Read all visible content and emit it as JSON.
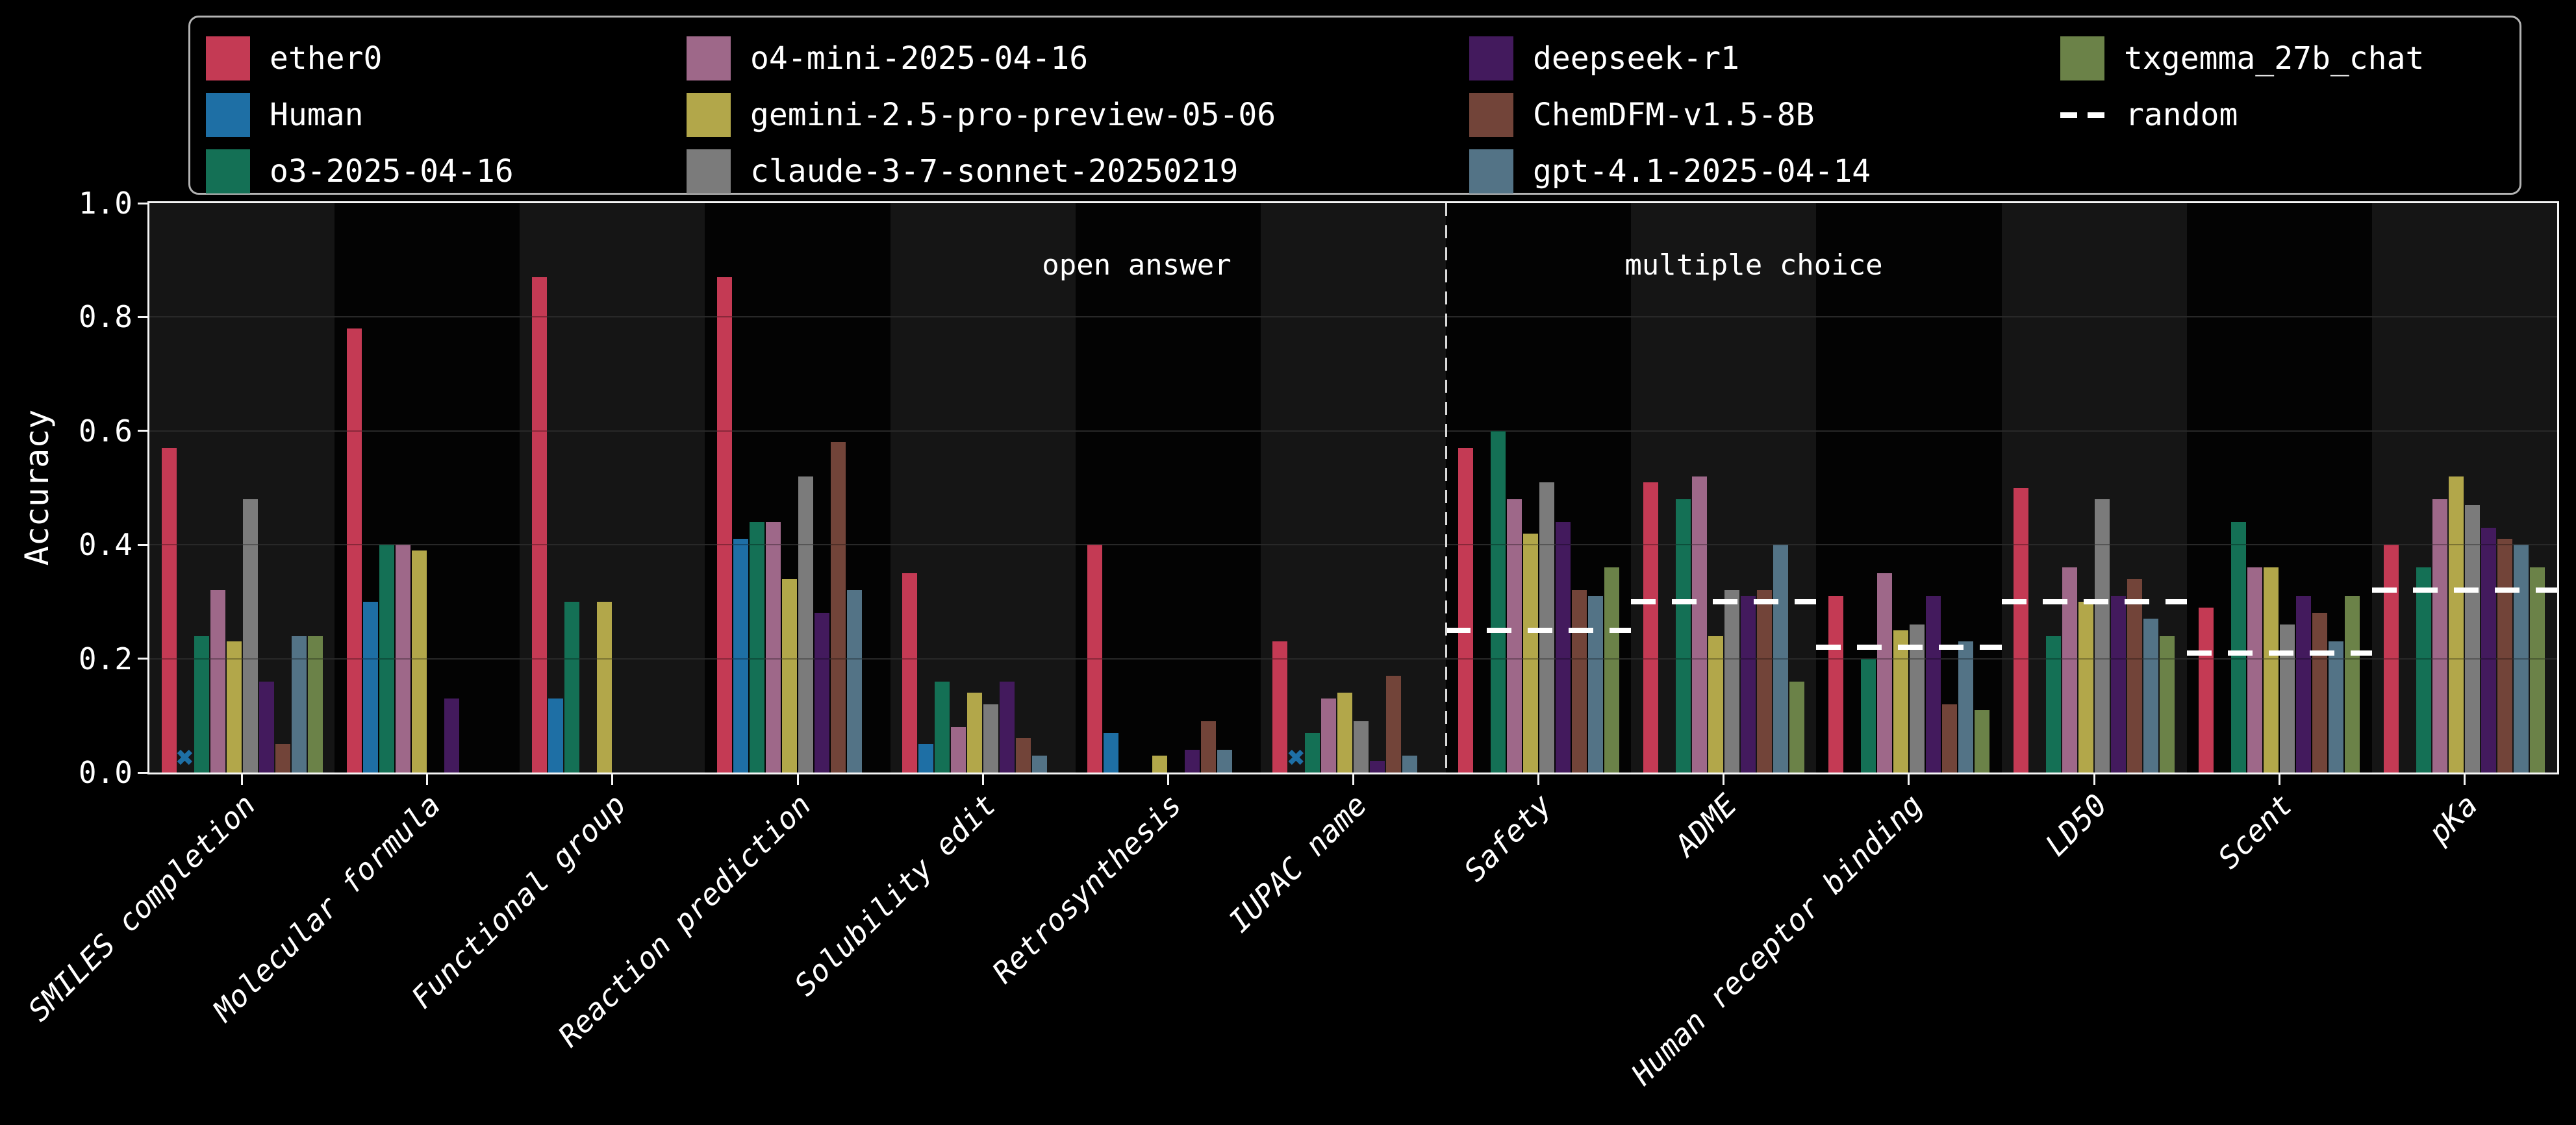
{
  "axes": {
    "ylabel": "Accuracy",
    "yticks": [
      "0.0",
      "0.2",
      "0.4",
      "0.6",
      "0.8",
      "1.0"
    ],
    "ylim": [
      0.0,
      1.0
    ],
    "grid_values": [
      0.2,
      0.4,
      0.6,
      0.8
    ]
  },
  "sections": {
    "open_answer_label": "open answer",
    "multiple_choice_label": "multiple choice",
    "separator_after_category_index": 6
  },
  "legend": {
    "border_color": "#b3b3b3",
    "random_label": "random",
    "random_color": "#ffffff"
  },
  "style": {
    "figure_background": "#000000",
    "band_light": "#151515",
    "band_dark": "#030303",
    "grid_color": "#3a3a3a",
    "spine_color": "#f5f5f5",
    "separator_color": "#d9d9d9",
    "random_line_color": "#ffffff"
  },
  "chart_data": {
    "type": "bar",
    "title": "",
    "xlabel": "",
    "ylabel": "Accuracy",
    "ylim": [
      0.0,
      1.0
    ],
    "grid": "horizontal",
    "legend_position": "top",
    "categories": [
      "SMILES completion",
      "Molecular formula",
      "Functional group",
      "Reaction prediction",
      "Solubility edit",
      "Retrosynthesis",
      "IUPAC name",
      "Safety",
      "ADME",
      "Human receptor binding",
      "LD50",
      "Scent",
      "pKa"
    ],
    "open_answer_categories": [
      "SMILES completion",
      "Molecular formula",
      "Functional group",
      "Reaction prediction",
      "Solubility edit",
      "Retrosynthesis",
      "IUPAC name"
    ],
    "multiple_choice_categories": [
      "Safety",
      "ADME",
      "Human receptor binding",
      "LD50",
      "Scent",
      "pKa"
    ],
    "series": [
      {
        "name": "ether0",
        "color": "#c43a54",
        "values": [
          0.57,
          0.78,
          0.87,
          0.87,
          0.35,
          0.4,
          0.23,
          0.57,
          0.51,
          0.31,
          0.5,
          0.29,
          0.4
        ]
      },
      {
        "name": "Human",
        "color": "#1e6fa5",
        "values": [
          null,
          0.3,
          0.13,
          0.41,
          0.05,
          0.07,
          null,
          null,
          null,
          null,
          null,
          null,
          null
        ]
      },
      {
        "name": "o3-2025-04-16",
        "color": "#147055",
        "values": [
          0.24,
          0.4,
          0.3,
          0.44,
          0.16,
          null,
          0.07,
          0.6,
          0.48,
          0.2,
          0.24,
          0.44,
          0.36
        ]
      },
      {
        "name": "o4-mini-2025-04-16",
        "color": "#9e6889",
        "values": [
          0.32,
          0.4,
          null,
          0.44,
          0.08,
          null,
          0.13,
          0.48,
          0.52,
          0.35,
          0.36,
          0.36,
          0.48
        ]
      },
      {
        "name": "gemini-2.5-pro-preview-05-06",
        "color": "#b2a74a",
        "values": [
          0.23,
          0.39,
          0.3,
          0.34,
          0.14,
          0.03,
          0.14,
          0.42,
          0.24,
          0.25,
          0.3,
          0.36,
          0.52
        ]
      },
      {
        "name": "claude-3-7-sonnet-20250219",
        "color": "#7b7b7b",
        "values": [
          0.48,
          null,
          null,
          0.52,
          0.12,
          null,
          0.09,
          0.51,
          0.32,
          0.26,
          0.48,
          0.26,
          0.47
        ]
      },
      {
        "name": "deepseek-r1",
        "color": "#431a5d",
        "values": [
          0.16,
          0.13,
          null,
          0.28,
          0.16,
          0.04,
          0.02,
          0.44,
          0.31,
          0.31,
          0.31,
          0.31,
          0.43
        ]
      },
      {
        "name": "ChemDFM-v1.5-8B",
        "color": "#724439",
        "values": [
          0.05,
          null,
          null,
          0.58,
          0.06,
          0.09,
          0.17,
          0.32,
          0.32,
          0.12,
          0.34,
          0.28,
          0.41
        ]
      },
      {
        "name": "gpt-4.1-2025-04-14",
        "color": "#537386",
        "values": [
          0.24,
          null,
          null,
          0.32,
          0.03,
          0.04,
          0.03,
          0.31,
          0.4,
          0.23,
          0.27,
          0.23,
          0.4
        ]
      },
      {
        "name": "txgemma_27b_chat",
        "color": "#6b8248",
        "values": [
          0.24,
          null,
          null,
          null,
          null,
          null,
          null,
          0.36,
          0.16,
          0.11,
          0.24,
          0.31,
          0.36
        ]
      }
    ],
    "human_x_markers": [
      {
        "category": "SMILES completion",
        "value": 0.02
      },
      {
        "category": "IUPAC name",
        "value": 0.02
      }
    ],
    "random_baselines": {
      "Safety": 0.25,
      "ADME": 0.3,
      "Human receptor binding": 0.22,
      "LD50": 0.3,
      "Scent": 0.21,
      "pKa": 0.32
    }
  }
}
